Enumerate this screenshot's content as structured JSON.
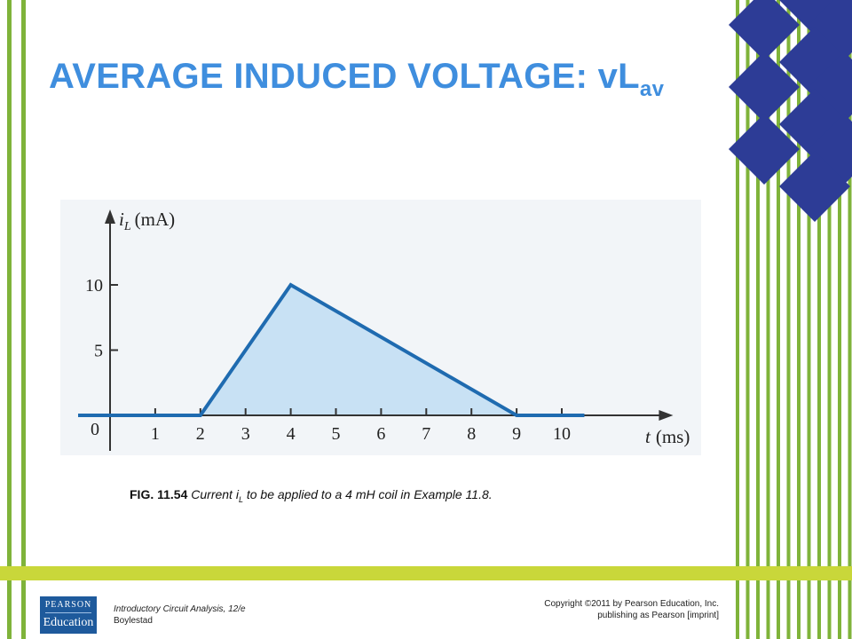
{
  "slide": {
    "title": "AVERAGE INDUCED VOLTAGE: vL",
    "title_subscript": "av"
  },
  "chart_data": {
    "type": "area",
    "x": [
      0,
      2,
      4,
      9,
      10.5
    ],
    "y": [
      0,
      0,
      10,
      0,
      0
    ],
    "xlim": [
      0,
      12
    ],
    "ylim": [
      0,
      12
    ],
    "xticks": [
      1,
      2,
      3,
      4,
      5,
      6,
      7,
      8,
      9,
      10
    ],
    "xtick_labels": [
      "1",
      "2",
      "3",
      "4",
      "5",
      "6",
      "7",
      "8",
      "9",
      "10"
    ],
    "yticks": [
      5,
      10
    ],
    "ytick_labels": [
      "5",
      "10"
    ],
    "origin_label": "0",
    "ylabel_symbol": "i",
    "ylabel_sub": "L",
    "ylabel_unit": "(mA)",
    "xlabel_symbol": "t",
    "xlabel_unit": "(ms)",
    "grid": false,
    "colors": {
      "line": "#1f6bb0",
      "fill": "#c8e1f4",
      "axis": "#333333"
    }
  },
  "caption": {
    "fig": "FIG. 11.54",
    "text_before": "Current i",
    "sub": "L",
    "text_after": " to be applied to a 4 mH coil in Example 11.8."
  },
  "footer": {
    "book_title": "Introductory Circuit Analysis, 12/e",
    "author": "Boylestad",
    "copyright_line1": "Copyright ©2011 by Pearson Education, Inc.",
    "copyright_line2": "publishing as Pearson [imprint]",
    "logo_top": "PEARSON",
    "logo_bottom": "Education"
  },
  "decor": {
    "stripe_color": "#7fb33a",
    "diamond_color": "#2d3c96"
  }
}
